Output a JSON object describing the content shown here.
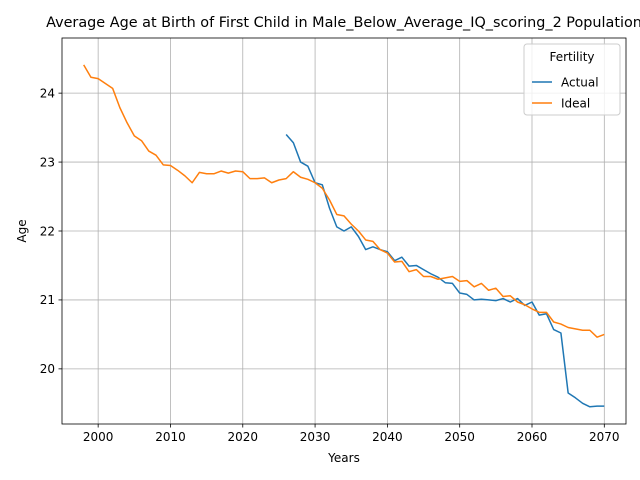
{
  "chart_data": {
    "type": "line",
    "title": "Average Age at Birth of First Child in Male_Below_Average_IQ_scoring_2 Population",
    "xlabel": "Years",
    "ylabel": "Age",
    "xlim": [
      1995,
      2073
    ],
    "ylim": [
      19.2,
      24.8
    ],
    "xticks": [
      2000,
      2010,
      2020,
      2030,
      2040,
      2050,
      2060,
      2070
    ],
    "yticks": [
      20,
      21,
      22,
      23,
      24
    ],
    "grid": true,
    "legend": {
      "title": "Fertility",
      "position": "top-right"
    },
    "series": [
      {
        "name": "Actual",
        "color": "#1f77b4",
        "x": [
          2026,
          2027,
          2028,
          2029,
          2030,
          2031,
          2032,
          2033,
          2034,
          2035,
          2036,
          2037,
          2038,
          2039,
          2040,
          2041,
          2042,
          2043,
          2044,
          2045,
          2046,
          2047,
          2048,
          2049,
          2050,
          2051,
          2052,
          2053,
          2054,
          2055,
          2056,
          2057,
          2058,
          2059,
          2060,
          2061,
          2062,
          2063,
          2064,
          2065,
          2066,
          2067,
          2068,
          2069,
          2070
        ],
        "y": [
          23.4,
          23.28,
          23.0,
          22.94,
          22.7,
          22.67,
          22.33,
          22.06,
          22.0,
          22.06,
          21.92,
          21.73,
          21.77,
          21.73,
          21.7,
          21.57,
          21.62,
          21.49,
          21.5,
          21.44,
          21.38,
          21.33,
          21.25,
          21.24,
          21.1,
          21.08,
          21.0,
          21.01,
          21.0,
          20.99,
          21.02,
          20.97,
          21.02,
          20.92,
          20.97,
          20.78,
          20.8,
          20.57,
          20.52,
          19.65,
          19.58,
          19.5,
          19.45,
          19.46,
          19.46
        ]
      },
      {
        "name": "Ideal",
        "color": "#ff7f0e",
        "x": [
          1998,
          1999,
          2000,
          2001,
          2002,
          2003,
          2004,
          2005,
          2006,
          2007,
          2008,
          2009,
          2010,
          2011,
          2012,
          2013,
          2014,
          2015,
          2016,
          2017,
          2018,
          2019,
          2020,
          2021,
          2022,
          2023,
          2024,
          2025,
          2026,
          2027,
          2028,
          2029,
          2030,
          2031,
          2032,
          2033,
          2034,
          2035,
          2036,
          2037,
          2038,
          2039,
          2040,
          2041,
          2042,
          2043,
          2044,
          2045,
          2046,
          2047,
          2048,
          2049,
          2050,
          2051,
          2052,
          2053,
          2054,
          2055,
          2056,
          2057,
          2058,
          2059,
          2060,
          2061,
          2062,
          2063,
          2064,
          2065,
          2066,
          2067,
          2068,
          2069,
          2070
        ],
        "y": [
          24.41,
          24.23,
          24.21,
          24.14,
          24.07,
          23.79,
          23.57,
          23.38,
          23.31,
          23.16,
          23.1,
          22.96,
          22.95,
          22.88,
          22.8,
          22.7,
          22.85,
          22.83,
          22.83,
          22.87,
          22.84,
          22.87,
          22.86,
          22.76,
          22.76,
          22.77,
          22.7,
          22.74,
          22.76,
          22.86,
          22.78,
          22.75,
          22.7,
          22.62,
          22.45,
          22.24,
          22.22,
          22.1,
          22.0,
          21.87,
          21.85,
          21.73,
          21.68,
          21.55,
          21.56,
          21.41,
          21.44,
          21.34,
          21.34,
          21.3,
          21.32,
          21.34,
          21.27,
          21.28,
          21.19,
          21.24,
          21.14,
          21.17,
          21.05,
          21.06,
          20.97,
          20.93,
          20.87,
          20.82,
          20.82,
          20.68,
          20.65,
          20.6,
          20.58,
          20.56,
          20.56,
          20.46,
          20.5
        ]
      }
    ]
  }
}
